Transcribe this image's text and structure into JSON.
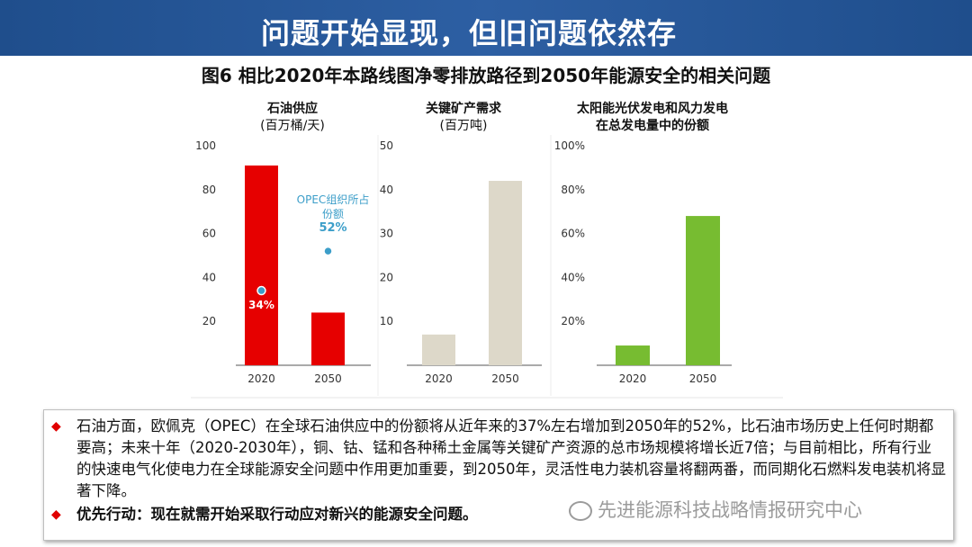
{
  "banner": {
    "title": "问题开始显现，但旧问题依然存"
  },
  "figure_title": "图6 相比2020年本路线图净零排放路径到2050年能源安全的相关问题",
  "colors": {
    "banner": "#1f4e8c",
    "oil_bar": "#e60000",
    "minerals_bar": "#ddd8c9",
    "solarwind_bar": "#77bc31",
    "callout": "#3c9ec9"
  },
  "chart_data": [
    {
      "type": "bar",
      "title": "石油供应",
      "subtitle": "(百万桶/天)",
      "categories": [
        "2020",
        "2050"
      ],
      "values": [
        91,
        24
      ],
      "ylim": [
        0,
        100
      ],
      "yticks": [
        "100",
        "80",
        "60",
        "40",
        "20"
      ],
      "annotations": [
        {
          "category": "2020",
          "label": "34%",
          "y": 34
        },
        {
          "category": "2050",
          "label": "OPEC组织所占份额",
          "value_label": "52%",
          "y": 52
        }
      ],
      "grid": false
    },
    {
      "type": "bar",
      "title": "关键矿产需求",
      "subtitle": "(百万吨)",
      "categories": [
        "2020",
        "2050"
      ],
      "values": [
        7,
        42
      ],
      "ylim": [
        0,
        50
      ],
      "yticks": [
        "50",
        "40",
        "30",
        "20",
        "10"
      ],
      "grid": false
    },
    {
      "type": "bar",
      "title": "太阳能光伏发电和风力发电在总发电量中的份额",
      "title_lines": [
        "太阳能光伏发电和风力发电",
        "在总发电量中的份额"
      ],
      "categories": [
        "2020",
        "2050"
      ],
      "values": [
        9,
        68
      ],
      "ylim": [
        0,
        100
      ],
      "yticks": [
        "100%",
        "80%",
        "60%",
        "40%",
        "20%"
      ],
      "grid": false
    }
  ],
  "bullets": [
    "石油方面，欧佩克（OPEC）在全球石油供应中的份额将从近年来的37%左右增加到2050年的52%，比石油市场历史上任何时期都要高；未来十年（2020-2030年），铜、钴、锰和各种稀土金属等关键矿产资源的总市场规模将增长近7倍；与目前相比，所有行业的快速电气化使电力在全球能源安全问题中作用更加重要，到2050年，灵活性电力装机容量将翻两番，而同期化石燃料发电装机将显著下降。",
    "优先行动：现在就需开始采取行动应对新兴的能源安全问题。"
  ],
  "watermark": {
    "text": "先进能源科技战略情报研究中心",
    "icon": "wechat-icon"
  }
}
